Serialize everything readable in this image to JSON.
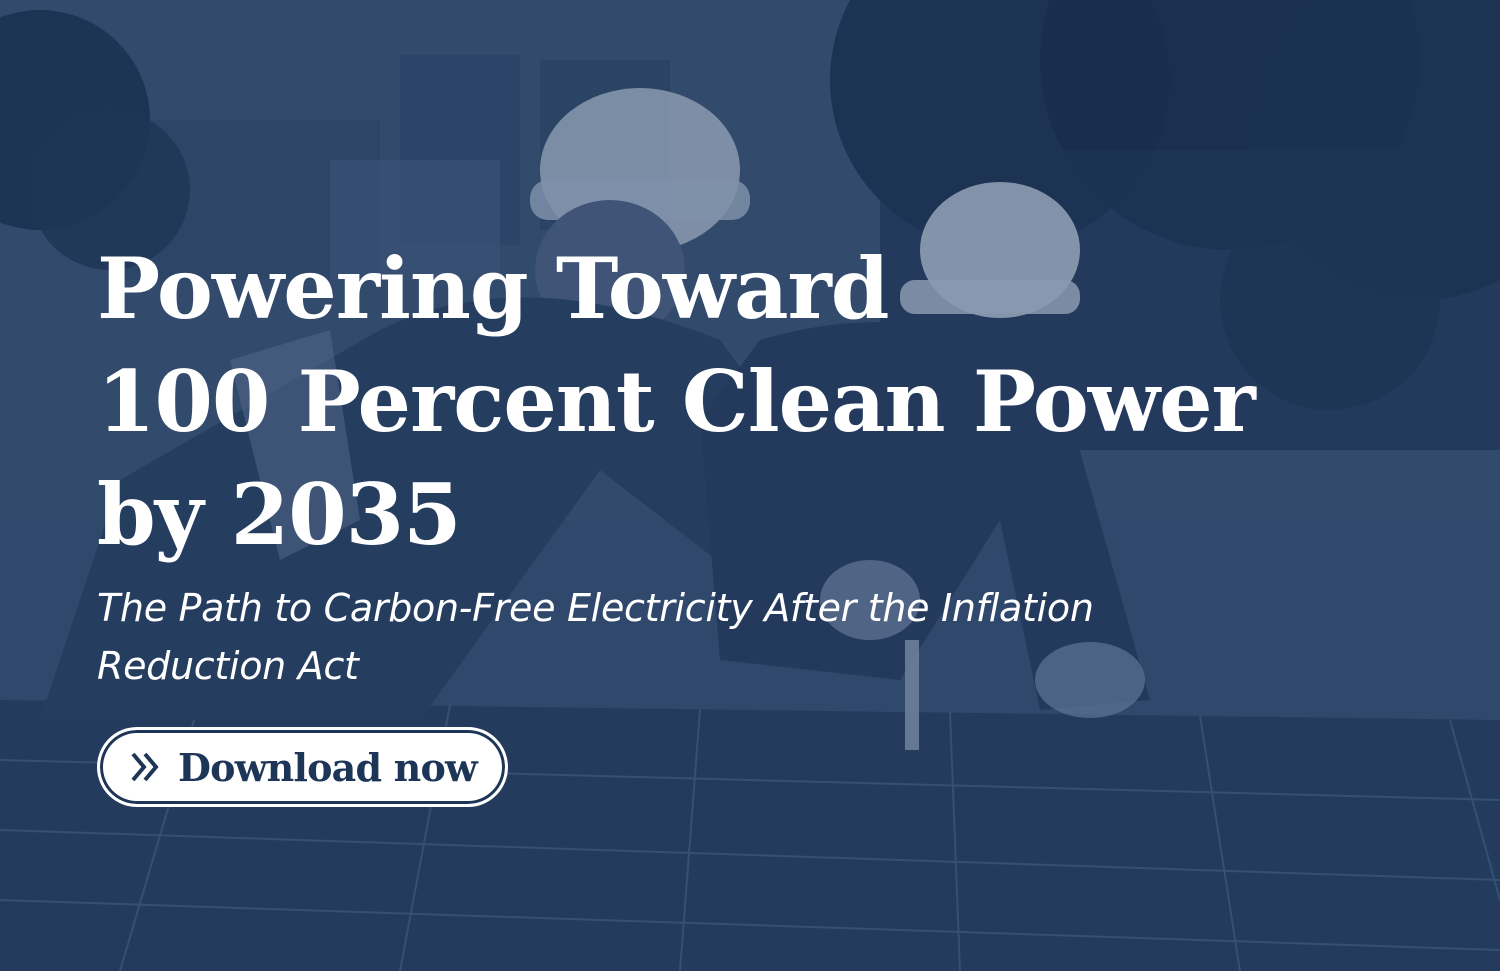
{
  "hero": {
    "title_lines": [
      "Powering Toward",
      "100 Percent Clean Power",
      "by 2035"
    ],
    "subtitle": "The Path to Carbon-Free Electricity After the Inflation Reduction Act",
    "background_image": "solar-workers-photo",
    "overlay_color": "#1d3557"
  },
  "cta": {
    "label": "Download now",
    "icon": "double-chevron-right-icon",
    "text_color": "#1d3557",
    "background_color": "#ffffff"
  }
}
